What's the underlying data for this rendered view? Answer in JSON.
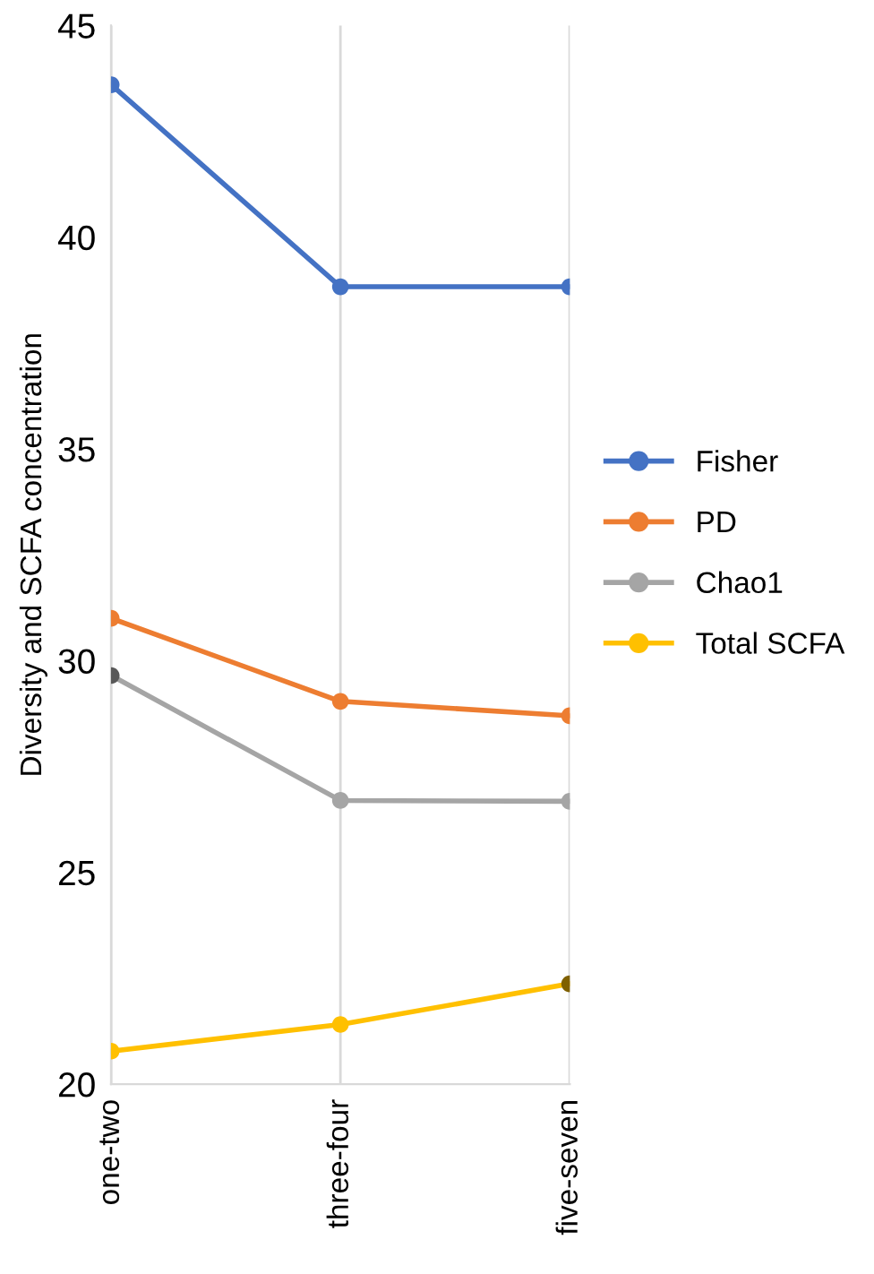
{
  "chart_data": {
    "type": "line",
    "ylabel": "Diversity and SCFA concentration",
    "categories": [
      "one-two",
      "three-four",
      "five-seven"
    ],
    "series": [
      {
        "name": "Fisher",
        "color": "#4472c4",
        "values": [
          43.6,
          38.83,
          38.83
        ]
      },
      {
        "name": "PD",
        "color": "#ed7d31",
        "values": [
          31.0,
          29.04,
          28.7
        ]
      },
      {
        "name": "Chao1",
        "color": "#a5a5a5",
        "colors": [
          "#595959",
          "#a5a5a5",
          "#a5a5a5"
        ],
        "values": [
          29.65,
          26.7,
          26.68
        ]
      },
      {
        "name": "Total SCFA",
        "color": "#ffc000",
        "colors": [
          "#ffc000",
          "#ffc000",
          "#7f6000"
        ],
        "values": [
          20.78,
          21.41,
          22.37
        ]
      }
    ],
    "ylim": [
      20,
      45
    ],
    "yticks": [
      20,
      25,
      30,
      35,
      40,
      45
    ],
    "grid": "x",
    "legend": "right",
    "marker": "circle",
    "line_style": "solid"
  }
}
